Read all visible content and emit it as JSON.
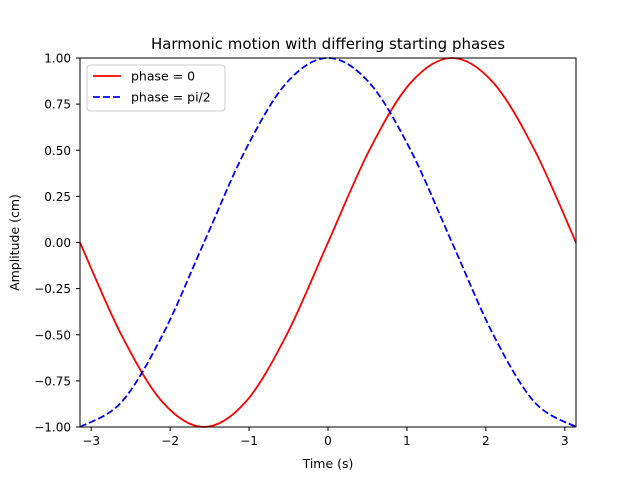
{
  "chart_data": {
    "type": "line",
    "title": "Harmonic motion with differing starting phases",
    "xlabel": "Time (s)",
    "ylabel": "Amplitude (cm)",
    "xlim": [
      -3.14159,
      3.14159
    ],
    "ylim": [
      -1.0,
      1.0
    ],
    "x_ticks": [
      -3,
      -2,
      -1,
      0,
      1,
      2,
      3
    ],
    "x_tick_labels": [
      "−3",
      "−2",
      "−1",
      "0",
      "1",
      "2",
      "3"
    ],
    "y_ticks": [
      -1.0,
      -0.75,
      -0.5,
      -0.25,
      0.0,
      0.25,
      0.5,
      0.75,
      1.0
    ],
    "y_tick_labels": [
      "−1.00",
      "−0.75",
      "−0.50",
      "−0.25",
      "0.00",
      "0.25",
      "0.50",
      "0.75",
      "1.00"
    ],
    "grid": false,
    "legend_position": "top-left",
    "x": [
      -3.14159,
      -2.61799,
      -2.0944,
      -1.5708,
      -1.0472,
      -0.5236,
      0.0,
      0.5236,
      1.0472,
      1.5708,
      2.0944,
      2.61799,
      3.14159
    ],
    "series": [
      {
        "name": "phase = 0",
        "color": "#ff0000",
        "style": "solid",
        "values": [
          0.0,
          -0.5,
          -0.866,
          -1.0,
          -0.866,
          -0.5,
          0.0,
          0.5,
          0.866,
          1.0,
          0.866,
          0.5,
          0.0
        ]
      },
      {
        "name": "phase = pi/2",
        "color": "#0000ff",
        "style": "dashed",
        "values": [
          -1.0,
          -0.866,
          -0.5,
          0.0,
          0.5,
          0.866,
          1.0,
          0.866,
          0.5,
          0.0,
          -0.5,
          -0.866,
          -1.0
        ]
      }
    ]
  }
}
